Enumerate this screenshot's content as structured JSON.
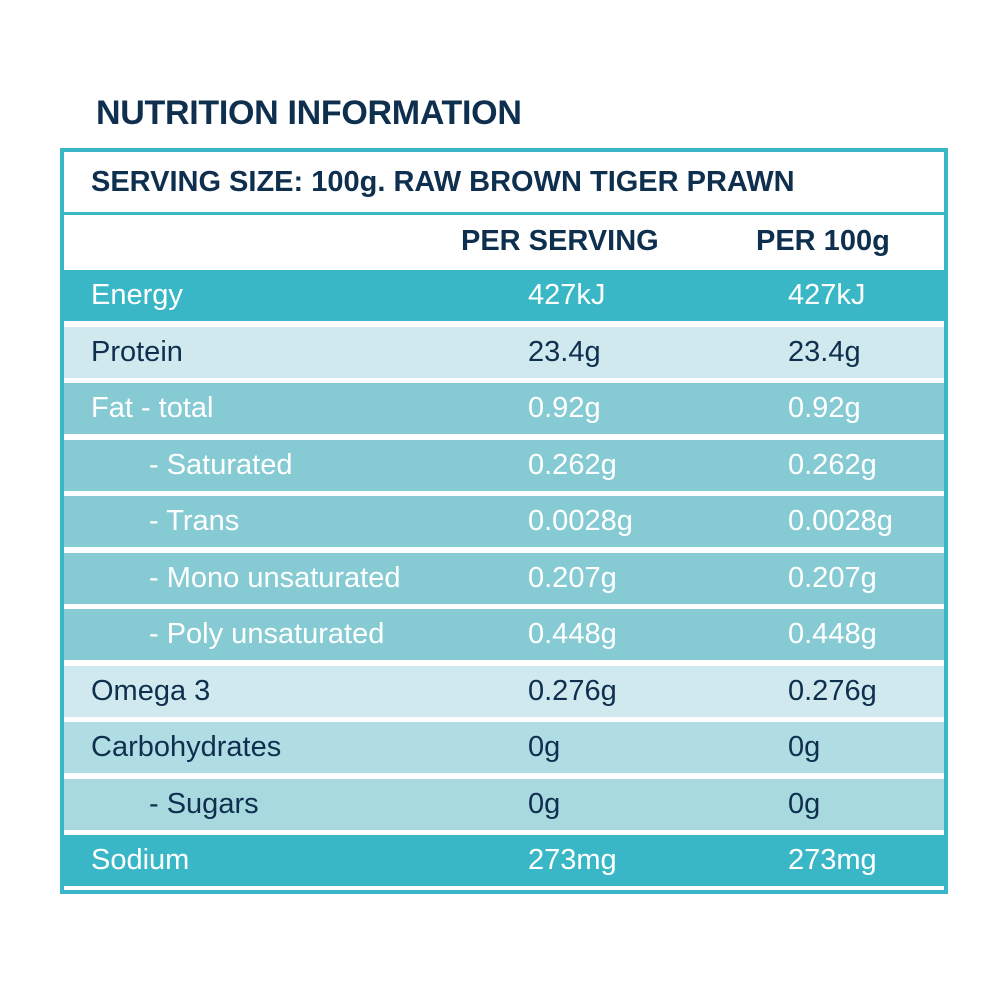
{
  "title": "NUTRITION INFORMATION",
  "serving_size": "SERVING SIZE: 100g. RAW BROWN TIGER PRAWN",
  "columns": {
    "per_serving": "PER SERVING",
    "per_100g": "PER 100g"
  },
  "colors": {
    "border": "#3ab7c7",
    "title_text": "#0e2f4e",
    "dark_row": "#3ab7c7",
    "light_row": "#cfe9ee",
    "mid_row": "#86cbd4",
    "carb_row": "#b0dde4",
    "sugar_row": "#a8d9df"
  },
  "rows": [
    {
      "label": "Energy",
      "per_serving": "427kJ",
      "per_100g": "427kJ",
      "indent": false,
      "bg": "#3ab7c7",
      "fg": "#ffffff"
    },
    {
      "label": "Protein",
      "per_serving": "23.4g",
      "per_100g": "23.4g",
      "indent": false,
      "bg": "#cfe9ee",
      "fg": "#0e2f4e"
    },
    {
      "label": "Fat - total",
      "per_serving": "0.92g",
      "per_100g": "0.92g",
      "indent": false,
      "bg": "#86cbd4",
      "fg": "#ffffff"
    },
    {
      "label": "- Saturated",
      "per_serving": "0.262g",
      "per_100g": "0.262g",
      "indent": true,
      "bg": "#86cbd4",
      "fg": "#ffffff"
    },
    {
      "label": "- Trans",
      "per_serving": "0.0028g",
      "per_100g": "0.0028g",
      "indent": true,
      "bg": "#86cbd4",
      "fg": "#ffffff"
    },
    {
      "label": "- Mono unsaturated",
      "per_serving": "0.207g",
      "per_100g": "0.207g",
      "indent": true,
      "bg": "#86cbd4",
      "fg": "#ffffff"
    },
    {
      "label": "- Poly unsaturated",
      "per_serving": "0.448g",
      "per_100g": "0.448g",
      "indent": true,
      "bg": "#86cbd4",
      "fg": "#ffffff"
    },
    {
      "label": "Omega 3",
      "per_serving": "0.276g",
      "per_100g": "0.276g",
      "indent": false,
      "bg": "#cfe9ee",
      "fg": "#0e2f4e"
    },
    {
      "label": "Carbohydrates",
      "per_serving": "0g",
      "per_100g": "0g",
      "indent": false,
      "bg": "#b0dde4",
      "fg": "#0e2f4e"
    },
    {
      "label": "- Sugars",
      "per_serving": "0g",
      "per_100g": "0g",
      "indent": true,
      "bg": "#a8d9df",
      "fg": "#0e2f4e"
    },
    {
      "label": "Sodium",
      "per_serving": "273mg",
      "per_100g": "273mg",
      "indent": false,
      "bg": "#3ab7c7",
      "fg": "#ffffff"
    }
  ]
}
